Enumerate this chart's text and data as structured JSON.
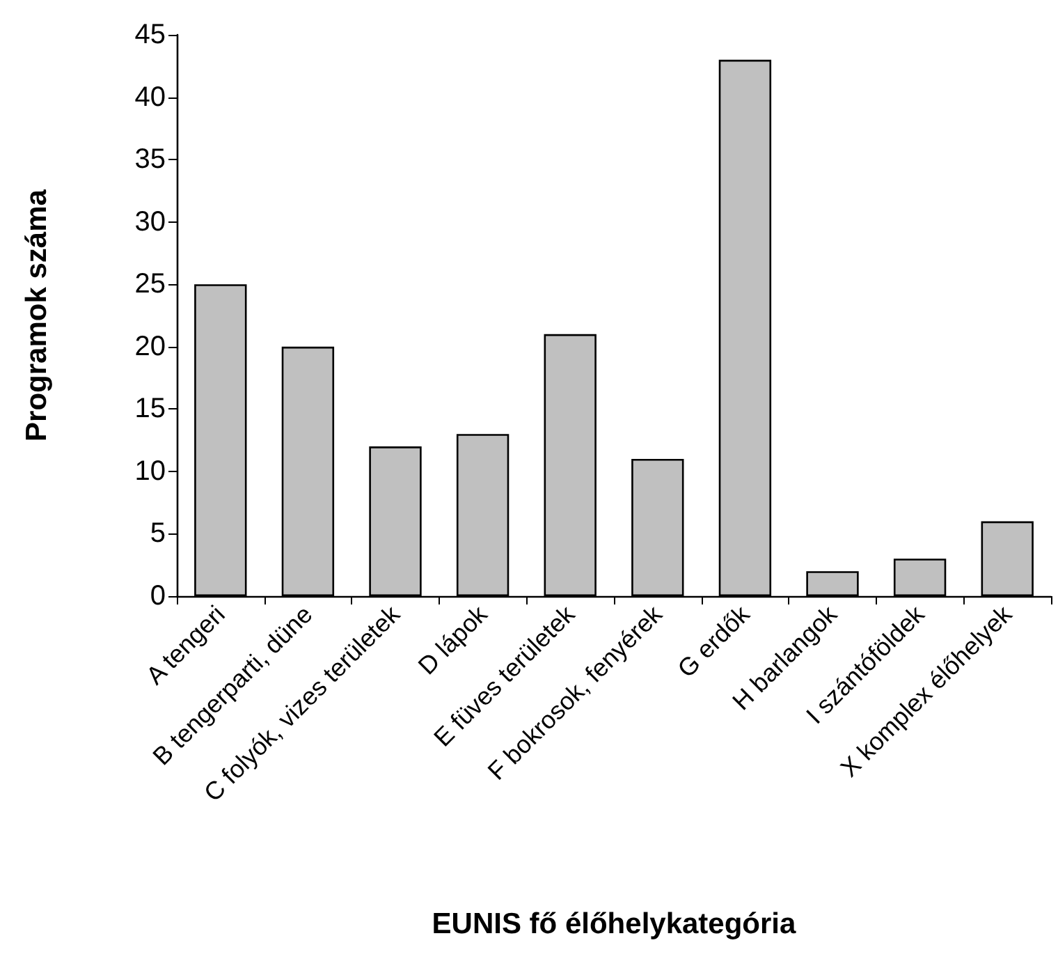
{
  "chart_data": {
    "type": "bar",
    "xlabel": "EUNIS fő élőhelykategória",
    "ylabel": "Programok száma",
    "categories": [
      "A tengeri",
      "B tengerparti, düne",
      "C folyók, vizes területek",
      "D lápok",
      "E füves területek",
      "F bokrosok, fenyérek",
      "G erdők",
      "H barlangok",
      "I szántóföldek",
      "X komplex élőhelyek"
    ],
    "values": [
      25,
      20,
      12,
      13,
      21,
      11,
      43,
      2,
      3,
      6
    ],
    "color": "#c0c0c0",
    "ylim": [
      0,
      45
    ],
    "yticks": [
      0,
      5,
      10,
      15,
      20,
      25,
      30,
      35,
      40,
      45
    ],
    "grid": false
  }
}
